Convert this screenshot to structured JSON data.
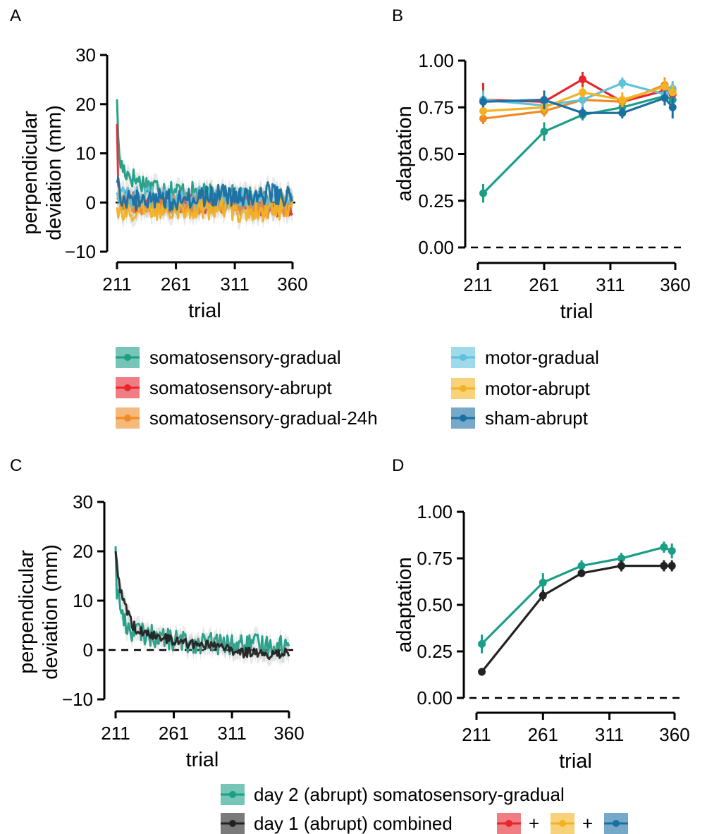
{
  "panel_labels": [
    "A",
    "B",
    "C",
    "D"
  ],
  "colors": {
    "somatosensory-gradual": "#1b9e86",
    "somatosensory-abrupt": "#e6262d",
    "somatosensory-gradual-24h": "#f08a24",
    "motor-gradual": "#5ec2dc",
    "motor-abrupt": "#f4b223",
    "sham-abrupt": "#1a6fa3",
    "day1-combined": "#222222"
  },
  "legend_top": {
    "items": [
      {
        "key": "somatosensory-gradual",
        "label": "somatosensory-gradual"
      },
      {
        "key": "somatosensory-abrupt",
        "label": "somatosensory-abrupt"
      },
      {
        "key": "somatosensory-gradual-24h",
        "label": "somatosensory-gradual-24h"
      },
      {
        "key": "motor-gradual",
        "label": "motor-gradual"
      },
      {
        "key": "motor-abrupt",
        "label": "motor-abrupt"
      },
      {
        "key": "sham-abrupt",
        "label": "sham-abrupt"
      }
    ]
  },
  "legend_bottom": {
    "day2_label": "day 2 (abrupt) somatosensory-gradual",
    "day1_label": "day 1 (abrupt) combined",
    "plus": "+"
  },
  "chart_data": [
    {
      "panel": "A",
      "type": "line",
      "xlabel": "trial",
      "ylabel": [
        "perpendicular",
        "deviation (mm)"
      ],
      "xlim": [
        211,
        360
      ],
      "ylim": [
        -10,
        30
      ],
      "xticks": [
        211,
        261,
        311,
        360
      ],
      "yticks": [
        -10,
        0,
        10,
        20,
        30
      ],
      "zero_line": "solid",
      "series": [
        {
          "key": "somatosensory-gradual",
          "x": [
            211,
            212,
            214,
            216,
            220,
            225,
            232,
            240,
            250,
            260,
            275,
            290,
            305,
            320,
            335,
            350,
            360
          ],
          "y": [
            21,
            12,
            8,
            7,
            6,
            5,
            4,
            3.5,
            3,
            2.5,
            2,
            1.5,
            1.5,
            1,
            1,
            1,
            0.5
          ]
        },
        {
          "key": "somatosensory-abrupt",
          "x": [
            211,
            212,
            214,
            218,
            225,
            240,
            260,
            280,
            300,
            320,
            340,
            360
          ],
          "y": [
            16,
            3,
            1,
            0.5,
            0,
            -0.5,
            0,
            -0.5,
            0,
            -0.5,
            -1,
            -1
          ]
        },
        {
          "key": "somatosensory-gradual-24h",
          "x": [
            211,
            215,
            225,
            240,
            260,
            280,
            300,
            320,
            340,
            360
          ],
          "y": [
            1,
            0.5,
            0,
            -0.5,
            0,
            -0.5,
            0,
            -0.5,
            -1,
            -0.5
          ]
        },
        {
          "key": "motor-gradual",
          "x": [
            211,
            215,
            225,
            240,
            260,
            280,
            300,
            320,
            340,
            360
          ],
          "y": [
            2,
            1.5,
            1,
            1,
            0.5,
            1,
            0.5,
            1,
            0.5,
            0.5
          ]
        },
        {
          "key": "motor-abrupt",
          "x": [
            211,
            215,
            225,
            240,
            260,
            280,
            300,
            320,
            340,
            360
          ],
          "y": [
            -1,
            -1.5,
            -2,
            -1.5,
            -1,
            -1.5,
            -1,
            -2,
            -1.5,
            -1
          ]
        },
        {
          "key": "sham-abrupt",
          "x": [
            211,
            215,
            225,
            240,
            260,
            280,
            300,
            320,
            340,
            360
          ],
          "y": [
            4,
            1.5,
            0.5,
            1,
            0.5,
            1,
            1.5,
            1,
            2,
            1
          ]
        }
      ]
    },
    {
      "panel": "B",
      "type": "line",
      "xlabel": "trial",
      "ylabel": "adaptation",
      "xlim": [
        211,
        360
      ],
      "ylim": [
        0,
        1
      ],
      "xticks": [
        211,
        261,
        311,
        360
      ],
      "yticks": [
        "0.00",
        "0.25",
        "0.50",
        "0.75",
        "1.00"
      ],
      "zero_line": "dashed",
      "series": [
        {
          "key": "somatosensory-gradual",
          "x": [
            215,
            261,
            290,
            320,
            352,
            358
          ],
          "y": [
            0.29,
            0.62,
            0.71,
            0.75,
            0.81,
            0.79
          ],
          "err": [
            0.05,
            0.05,
            0.03,
            0.03,
            0.03,
            0.04
          ]
        },
        {
          "key": "somatosensory-abrupt",
          "x": [
            215,
            261,
            290,
            320,
            352,
            358
          ],
          "y": [
            0.79,
            0.78,
            0.9,
            0.78,
            0.84,
            0.82
          ],
          "err": [
            0.09,
            0.04,
            0.04,
            0.03,
            0.04,
            0.04
          ]
        },
        {
          "key": "somatosensory-gradual-24h",
          "x": [
            215,
            261,
            290,
            320,
            352,
            358
          ],
          "y": [
            0.69,
            0.73,
            0.79,
            0.78,
            0.87,
            0.84
          ],
          "err": [
            0.03,
            0.03,
            0.02,
            0.03,
            0.04,
            0.04
          ]
        },
        {
          "key": "motor-gradual",
          "x": [
            215,
            261,
            290,
            320,
            352,
            358
          ],
          "y": [
            0.79,
            0.76,
            0.79,
            0.88,
            0.82,
            0.85
          ],
          "err": [
            0.05,
            0.04,
            0.04,
            0.03,
            0.04,
            0.04
          ]
        },
        {
          "key": "motor-abrupt",
          "x": [
            215,
            261,
            290,
            320,
            352,
            358
          ],
          "y": [
            0.73,
            0.75,
            0.83,
            0.79,
            0.86,
            0.83
          ],
          "err": [
            0.03,
            0.03,
            0.03,
            0.04,
            0.04,
            0.04
          ]
        },
        {
          "key": "sham-abrupt",
          "x": [
            215,
            261,
            290,
            320,
            352,
            358
          ],
          "y": [
            0.78,
            0.79,
            0.72,
            0.72,
            0.8,
            0.75
          ],
          "err": [
            0.03,
            0.05,
            0.03,
            0.03,
            0.04,
            0.06
          ]
        }
      ]
    },
    {
      "panel": "C",
      "type": "line",
      "xlabel": "trial",
      "ylabel": [
        "perpendicular",
        "deviation (mm)"
      ],
      "xlim": [
        211,
        360
      ],
      "ylim": [
        -10,
        30
      ],
      "xticks": [
        211,
        261,
        311,
        360
      ],
      "yticks": [
        -10,
        0,
        10,
        20,
        30
      ],
      "zero_line": "dashed",
      "series": [
        {
          "key": "somatosensory-gradual",
          "x": [
            211,
            212,
            214,
            216,
            218,
            220,
            224,
            228,
            232,
            240,
            250,
            260,
            275,
            290,
            305,
            320,
            335,
            350,
            360
          ],
          "y": [
            21,
            12,
            10,
            8,
            6,
            5,
            4,
            4,
            3.5,
            3,
            2.5,
            2,
            1.5,
            1.5,
            1,
            1,
            1,
            1,
            0.5
          ]
        },
        {
          "key": "day1-combined",
          "x": [
            211,
            213,
            216,
            219,
            222,
            226,
            230,
            235,
            240,
            250,
            260,
            270,
            280,
            290,
            300,
            310,
            320,
            330,
            340,
            350,
            360
          ],
          "y": [
            20,
            14,
            12,
            9,
            7,
            5,
            4,
            3.5,
            3,
            2.5,
            2,
            1.5,
            1,
            1,
            0.5,
            0,
            -0.5,
            -0.5,
            -1,
            -1,
            -0.5
          ]
        }
      ]
    },
    {
      "panel": "D",
      "type": "line",
      "xlabel": "trial",
      "ylabel": "adaptation",
      "xlim": [
        211,
        360
      ],
      "ylim": [
        0,
        1
      ],
      "xticks": [
        211,
        261,
        311,
        360
      ],
      "yticks": [
        "0.00",
        "0.25",
        "0.50",
        "0.75",
        "1.00"
      ],
      "zero_line": "dashed",
      "series": [
        {
          "key": "somatosensory-gradual",
          "x": [
            215,
            261,
            290,
            320,
            352,
            358
          ],
          "y": [
            0.29,
            0.62,
            0.71,
            0.75,
            0.81,
            0.79
          ],
          "err": [
            0.05,
            0.05,
            0.03,
            0.03,
            0.03,
            0.04
          ]
        },
        {
          "key": "day1-combined",
          "x": [
            215,
            261,
            290,
            320,
            352,
            358
          ],
          "y": [
            0.14,
            0.55,
            0.67,
            0.71,
            0.71,
            0.71
          ],
          "err": [
            0.02,
            0.03,
            0.02,
            0.03,
            0.03,
            0.03
          ]
        }
      ]
    }
  ]
}
